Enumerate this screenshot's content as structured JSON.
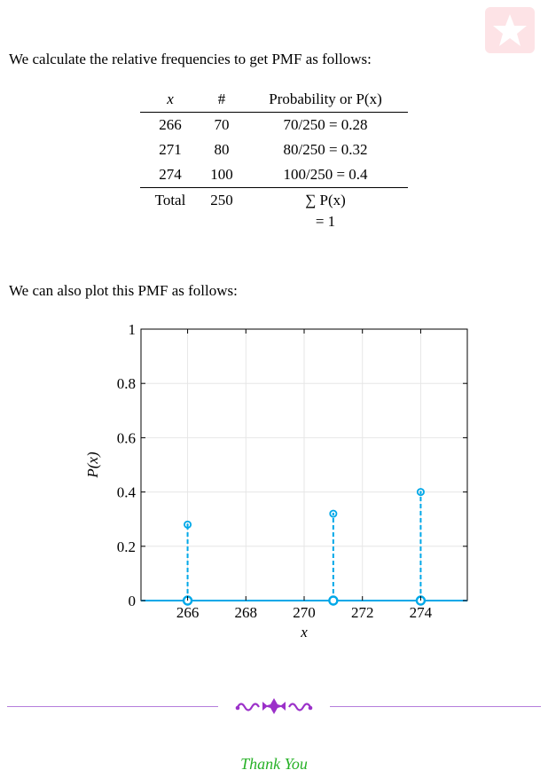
{
  "intro_text": "We calculate the relative frequencies to get PMF as follows:",
  "table": {
    "headers": [
      "x",
      "#",
      "Probability or P(x)"
    ],
    "rows": [
      [
        "266",
        "70",
        "70/250 = 0.28"
      ],
      [
        "271",
        "80",
        "80/250 = 0.32"
      ],
      [
        "274",
        "100",
        "100/250 = 0.4"
      ]
    ],
    "total": {
      "label": "Total",
      "count": "250",
      "prob_line1": "∑ P(x)",
      "prob_line2": "= 1"
    }
  },
  "plot_text": "We can also plot this PMF as follows:",
  "chart_data": {
    "type": "stem",
    "x": [
      266,
      271,
      274
    ],
    "y": [
      0.28,
      0.32,
      0.4
    ],
    "xlabel": "x",
    "ylabel": "P(x)",
    "xlim": [
      264.4,
      275.6
    ],
    "ylim": [
      0,
      1
    ],
    "xticks": [
      266,
      268,
      270,
      272,
      274
    ],
    "yticks": [
      0,
      0.2,
      0.4,
      0.6,
      0.8,
      1
    ],
    "grid": true,
    "color": "#00a8e8"
  },
  "footer": {
    "thanks": "Thank You",
    "divider_color": "#b57edc",
    "thanks_color": "#27b127"
  }
}
